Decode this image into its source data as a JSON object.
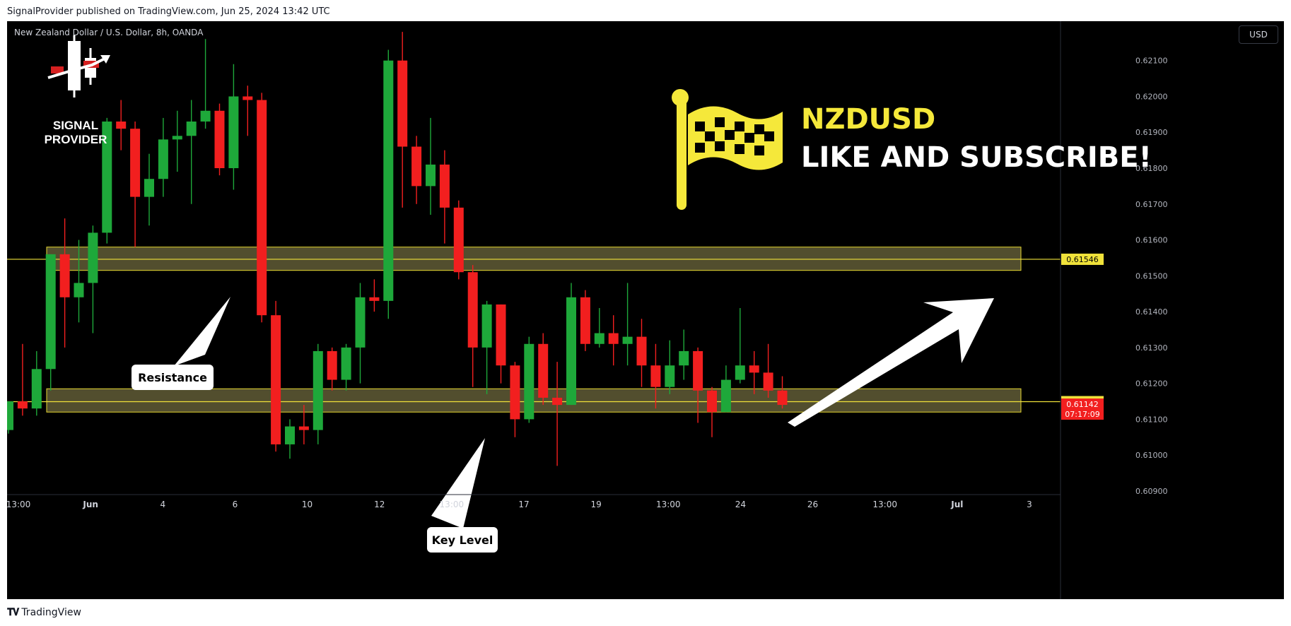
{
  "header": {
    "publisher_text": "SignalProvider published on TradingView.com, Jun 25, 2024 13:42 UTC"
  },
  "footer": {
    "logo_text": "TradingView",
    "logo_icon": "tradingview-logo-icon"
  },
  "chart_header": {
    "symbol_title": "New Zealand Dollar / U.S. Dollar, 8h, OANDA",
    "currency": "USD"
  },
  "branding": {
    "logo_text": "SIGNAL PROVIDER",
    "flag_icon": "checkered-flag-icon"
  },
  "headline": {
    "pair": "NZDUSD",
    "cta": "LIKE AND SUBSCRIBE!"
  },
  "annotations": [
    {
      "label": "Resistance"
    },
    {
      "label": "Key Level"
    }
  ],
  "colors": {
    "up": "#1ea83a",
    "down": "#f21f1f",
    "zone_fill": "#66623a",
    "zone_border": "#e6d730",
    "line": "#f0e23a",
    "headline_accent": "#f5e83a",
    "background": "#000000"
  },
  "chart_data": {
    "type": "candlestick",
    "symbol": "NZDUSD",
    "interval": "8h",
    "ylim": [
      0.609,
      0.6219
    ],
    "y_ticks": [
      "0.62100",
      "0.62000",
      "0.61900",
      "0.61800",
      "0.61700",
      "0.61600",
      "0.61500",
      "0.61400",
      "0.61300",
      "0.61200",
      "0.61100",
      "0.61000",
      "0.60900"
    ],
    "x_ticks": [
      "13:00",
      "Jun",
      "4",
      "6",
      "10",
      "12",
      "13:00",
      "17",
      "19",
      "13:00",
      "24",
      "26",
      "13:00",
      "Jul",
      "3"
    ],
    "price_labels": [
      {
        "value": "0.61546",
        "level": 0.61546
      },
      {
        "value": "0.61149",
        "level": 0.61149
      },
      {
        "value": "0.61142",
        "level": 0.61142,
        "countdown": "07:17:09"
      }
    ],
    "zones": [
      {
        "name": "resistance",
        "from": 0.61515,
        "to": 0.6158
      },
      {
        "name": "key-level",
        "from": 0.6112,
        "to": 0.61185
      }
    ],
    "lines": [
      0.61546,
      0.61149
    ],
    "candles": [
      [
        0.6107,
        0.6115,
        0.6106,
        0.6115
      ],
      [
        0.6115,
        0.6113,
        0.6111,
        0.6131
      ],
      [
        0.6113,
        0.6124,
        0.6111,
        0.6129
      ],
      [
        0.6124,
        0.6156,
        0.6118,
        0.6156
      ],
      [
        0.6156,
        0.6144,
        0.613,
        0.6166
      ],
      [
        0.6144,
        0.6148,
        0.6137,
        0.616
      ],
      [
        0.6148,
        0.6162,
        0.6134,
        0.6164
      ],
      [
        0.6162,
        0.6193,
        0.6159,
        0.6194
      ],
      [
        0.6193,
        0.6191,
        0.6185,
        0.6199
      ],
      [
        0.6191,
        0.6172,
        0.6158,
        0.6193
      ],
      [
        0.6172,
        0.6177,
        0.6164,
        0.6184
      ],
      [
        0.6177,
        0.6188,
        0.6172,
        0.6194
      ],
      [
        0.6188,
        0.6189,
        0.6179,
        0.6196
      ],
      [
        0.6189,
        0.6193,
        0.617,
        0.6199
      ],
      [
        0.6193,
        0.6196,
        0.6191,
        0.6216
      ],
      [
        0.6196,
        0.618,
        0.6178,
        0.6198
      ],
      [
        0.618,
        0.62,
        0.6174,
        0.6209
      ],
      [
        0.62,
        0.6199,
        0.6189,
        0.6203
      ],
      [
        0.6199,
        0.6139,
        0.6137,
        0.6201
      ],
      [
        0.6139,
        0.6103,
        0.6101,
        0.6143
      ],
      [
        0.6103,
        0.6108,
        0.6099,
        0.611
      ],
      [
        0.6108,
        0.6107,
        0.6103,
        0.6114
      ],
      [
        0.6107,
        0.6129,
        0.6103,
        0.6131
      ],
      [
        0.6129,
        0.6121,
        0.6118,
        0.613
      ],
      [
        0.6121,
        0.613,
        0.6118,
        0.6131
      ],
      [
        0.613,
        0.6144,
        0.612,
        0.6148
      ],
      [
        0.6144,
        0.6143,
        0.614,
        0.6149
      ],
      [
        0.6143,
        0.621,
        0.6138,
        0.6213
      ],
      [
        0.621,
        0.6186,
        0.6169,
        0.6218
      ],
      [
        0.6186,
        0.6175,
        0.617,
        0.6189
      ],
      [
        0.6175,
        0.6181,
        0.6167,
        0.6194
      ],
      [
        0.6181,
        0.6169,
        0.6159,
        0.6185
      ],
      [
        0.6169,
        0.6151,
        0.6149,
        0.6171
      ],
      [
        0.6151,
        0.613,
        0.6119,
        0.6153
      ],
      [
        0.613,
        0.6142,
        0.6117,
        0.6143
      ],
      [
        0.6142,
        0.6125,
        0.612,
        0.6142
      ],
      [
        0.6125,
        0.611,
        0.6105,
        0.6126
      ],
      [
        0.611,
        0.6131,
        0.6109,
        0.6133
      ],
      [
        0.6131,
        0.6116,
        0.6114,
        0.6134
      ],
      [
        0.6116,
        0.6114,
        0.6097,
        0.6126
      ],
      [
        0.6114,
        0.6144,
        0.6114,
        0.6148
      ],
      [
        0.6144,
        0.6131,
        0.6129,
        0.6146
      ],
      [
        0.6131,
        0.6134,
        0.613,
        0.6141
      ],
      [
        0.6134,
        0.6131,
        0.6125,
        0.6139
      ],
      [
        0.6131,
        0.6133,
        0.6125,
        0.6148
      ],
      [
        0.6133,
        0.6125,
        0.6119,
        0.6138
      ],
      [
        0.6125,
        0.6119,
        0.6113,
        0.6131
      ],
      [
        0.6119,
        0.6125,
        0.6117,
        0.6132
      ],
      [
        0.6125,
        0.6129,
        0.6121,
        0.6135
      ],
      [
        0.6129,
        0.6118,
        0.6109,
        0.613
      ],
      [
        0.6118,
        0.6112,
        0.6105,
        0.6119
      ],
      [
        0.6112,
        0.6121,
        0.6112,
        0.6125
      ],
      [
        0.6121,
        0.6125,
        0.612,
        0.6141
      ],
      [
        0.6125,
        0.6123,
        0.6117,
        0.6129
      ],
      [
        0.6123,
        0.6118,
        0.6116,
        0.6131
      ],
      [
        0.6118,
        0.6114,
        0.6113,
        0.6122
      ]
    ]
  }
}
